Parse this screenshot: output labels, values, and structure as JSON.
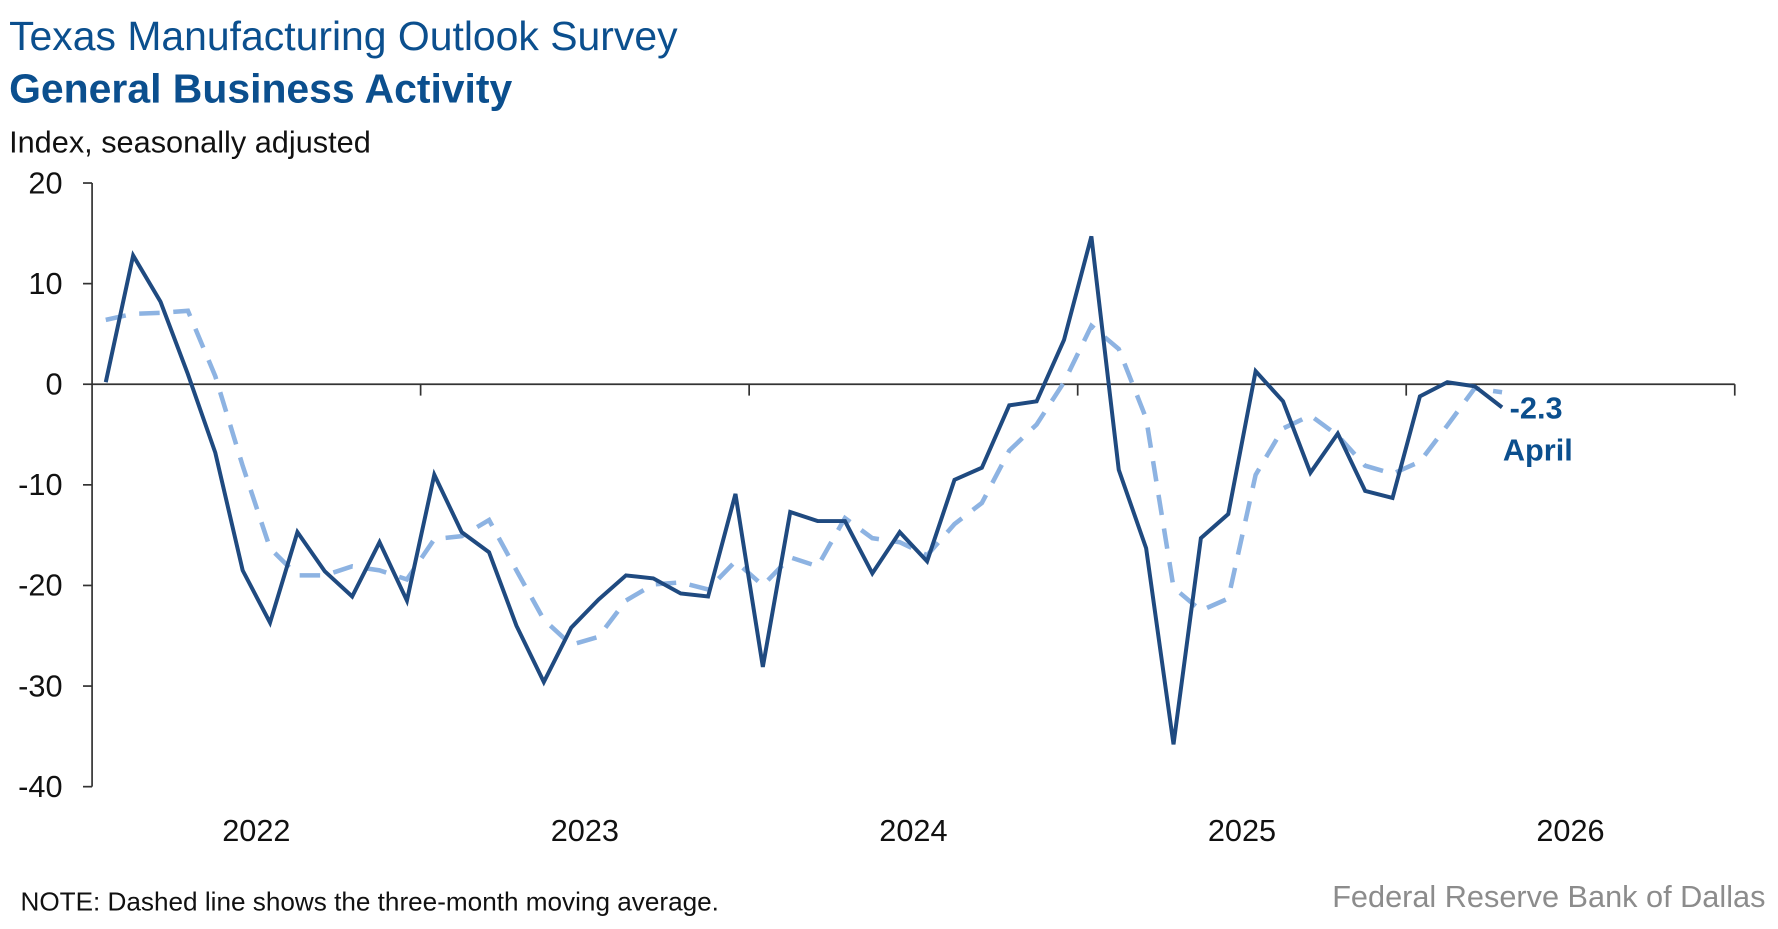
{
  "header": {
    "title": "Texas Manufacturing Outlook Survey",
    "subtitle": "General Business Activity",
    "unit_label": "Index, seasonally adjusted"
  },
  "footer": {
    "note": "NOTE: Dashed line shows the three-month moving average.",
    "source": "Federal Reserve Bank of Dallas"
  },
  "colors": {
    "title": "#0B4F8E",
    "index_line": "#1F4A80",
    "moving_average": "#8DB3E2",
    "annotation": "#0B4F8E",
    "source_text": "#8C8C8C"
  },
  "chart_data": {
    "type": "line",
    "ylim": [
      -40,
      20
    ],
    "yticks": [
      "20",
      "10",
      "0",
      "-10",
      "-20",
      "-30",
      "-40"
    ],
    "xtick_labels": [
      "2022",
      "2023",
      "2024",
      "2025",
      "2026"
    ],
    "grid": false,
    "x": [
      "2022-01",
      "2022-02",
      "2022-03",
      "2022-04",
      "2022-05",
      "2022-06",
      "2022-07",
      "2022-08",
      "2022-09",
      "2022-10",
      "2022-11",
      "2022-12",
      "2023-01",
      "2023-02",
      "2023-03",
      "2023-04",
      "2023-05",
      "2023-06",
      "2023-07",
      "2023-08",
      "2023-09",
      "2023-10",
      "2023-11",
      "2023-12",
      "2024-01",
      "2024-02",
      "2024-03",
      "2024-04",
      "2024-05",
      "2024-06",
      "2024-07",
      "2024-08",
      "2024-09",
      "2024-10",
      "2024-11",
      "2024-12",
      "2025-01",
      "2025-02",
      "2025-03",
      "2025-04",
      "2025-05",
      "2025-06",
      "2025-07",
      "2025-08",
      "2025-09",
      "2025-10",
      "2025-11",
      "2025-12",
      "2026-01",
      "2026-02",
      "2026-03",
      "2026-04"
    ],
    "series": [
      {
        "style": "solid",
        "values": [
          0.2,
          12.8,
          8.2,
          1.0,
          -6.8,
          -18.5,
          -23.7,
          -14.7,
          -18.6,
          -21.1,
          -15.7,
          -21.5,
          -9.0,
          -14.7,
          -16.7,
          -24.0,
          -29.6,
          -24.2,
          -21.4,
          -19.0,
          -19.3,
          -20.8,
          -21.1,
          -10.9,
          -28.1,
          -12.7,
          -13.6,
          -13.6,
          -18.8,
          -14.7,
          -17.6,
          -9.5,
          -8.3,
          -2.1,
          -1.7,
          4.4,
          14.7,
          -8.5,
          -16.3,
          -35.8,
          -15.3,
          -12.9,
          1.3,
          -1.7,
          -8.8,
          -4.9,
          -10.6,
          -11.3,
          -1.2,
          0.2,
          -0.2,
          -2.3
        ]
      },
      {
        "style": "dashed",
        "values": [
          6.4,
          7.0,
          7.1,
          7.3,
          0.8,
          -8.1,
          -16.3,
          -19.0,
          -19.0,
          -18.1,
          -18.5,
          -19.4,
          -15.4,
          -15.1,
          -13.5,
          -18.5,
          -23.4,
          -25.9,
          -25.1,
          -21.5,
          -19.9,
          -19.7,
          -20.4,
          -17.6,
          -20.0,
          -17.2,
          -18.1,
          -13.3,
          -15.3,
          -15.7,
          -17.0,
          -13.9,
          -11.8,
          -6.6,
          -4.0,
          0.2,
          5.8,
          3.5,
          -3.4,
          -20.2,
          -22.5,
          -21.3,
          -9.0,
          -4.4,
          -3.1,
          -5.1,
          -8.1,
          -8.9,
          -7.7,
          -4.1,
          -0.4,
          -0.8
        ]
      }
    ],
    "annotation": {
      "value": "-2.3",
      "label": "April"
    }
  }
}
